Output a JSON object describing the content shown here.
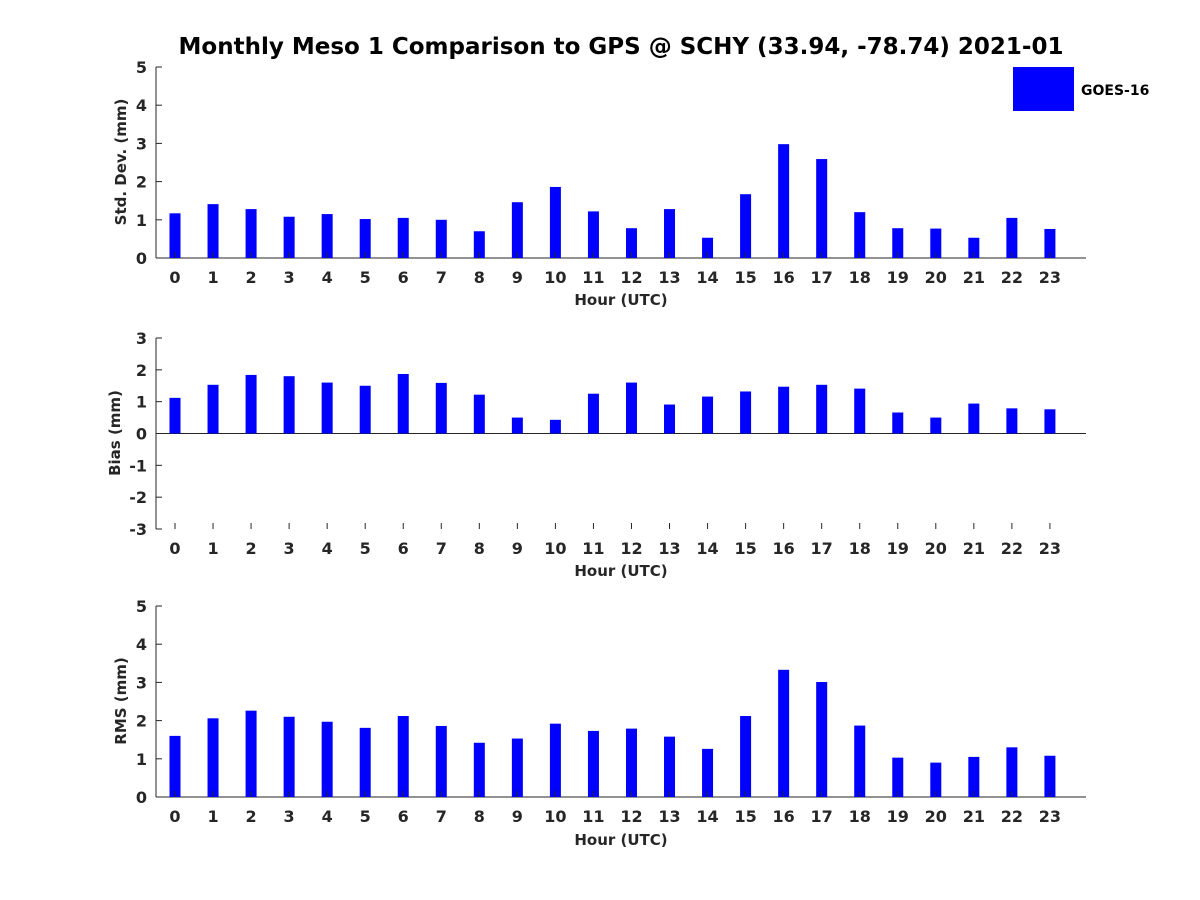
{
  "figure": {
    "title": "Monthly Meso 1 Comparison to GPS @ SCHY (33.94, -78.74) 2021-01",
    "legend": {
      "label": "GOES-16",
      "color": "#0000ff"
    }
  },
  "chart_data": [
    {
      "type": "bar",
      "name": "std-dev",
      "xlabel": "Hour (UTC)",
      "ylabel": "Std. Dev. (mm)",
      "ylim": [
        0,
        5
      ],
      "yticks": [
        0,
        1,
        2,
        3,
        4,
        5
      ],
      "categories": [
        "0",
        "1",
        "2",
        "3",
        "4",
        "5",
        "6",
        "7",
        "8",
        "9",
        "10",
        "11",
        "12",
        "13",
        "14",
        "15",
        "16",
        "17",
        "18",
        "19",
        "20",
        "21",
        "22",
        "23"
      ],
      "series": [
        {
          "name": "GOES-16",
          "values": [
            1.17,
            1.41,
            1.28,
            1.08,
            1.15,
            1.02,
            1.05,
            1.0,
            0.7,
            1.46,
            1.86,
            1.22,
            0.78,
            1.28,
            0.53,
            1.67,
            2.98,
            2.59,
            1.2,
            0.78,
            0.77,
            0.53,
            1.05,
            0.76
          ]
        }
      ]
    },
    {
      "type": "bar",
      "name": "bias",
      "xlabel": "Hour (UTC)",
      "ylabel": "Bias (mm)",
      "ylim": [
        -3,
        3
      ],
      "yticks": [
        -3,
        -2,
        -1,
        0,
        1,
        2,
        3
      ],
      "categories": [
        "0",
        "1",
        "2",
        "3",
        "4",
        "5",
        "6",
        "7",
        "8",
        "9",
        "10",
        "11",
        "12",
        "13",
        "14",
        "15",
        "16",
        "17",
        "18",
        "19",
        "20",
        "21",
        "22",
        "23"
      ],
      "series": [
        {
          "name": "GOES-16",
          "values": [
            1.12,
            1.53,
            1.84,
            1.8,
            1.6,
            1.5,
            1.87,
            1.59,
            1.22,
            0.5,
            0.43,
            1.25,
            1.6,
            0.91,
            1.16,
            1.32,
            1.47,
            1.53,
            1.41,
            0.66,
            0.5,
            0.94,
            0.79,
            0.76
          ]
        }
      ]
    },
    {
      "type": "bar",
      "name": "rms",
      "xlabel": "Hour (UTC)",
      "ylabel": "RMS (mm)",
      "ylim": [
        0,
        5
      ],
      "yticks": [
        0,
        1,
        2,
        3,
        4,
        5
      ],
      "categories": [
        "0",
        "1",
        "2",
        "3",
        "4",
        "5",
        "6",
        "7",
        "8",
        "9",
        "10",
        "11",
        "12",
        "13",
        "14",
        "15",
        "16",
        "17",
        "18",
        "19",
        "20",
        "21",
        "22",
        "23"
      ],
      "series": [
        {
          "name": "GOES-16",
          "values": [
            1.6,
            2.06,
            2.26,
            2.1,
            1.97,
            1.81,
            2.12,
            1.86,
            1.42,
            1.53,
            1.92,
            1.73,
            1.79,
            1.58,
            1.26,
            2.12,
            3.33,
            3.01,
            1.87,
            1.03,
            0.9,
            1.05,
            1.3,
            1.08
          ]
        }
      ]
    }
  ]
}
